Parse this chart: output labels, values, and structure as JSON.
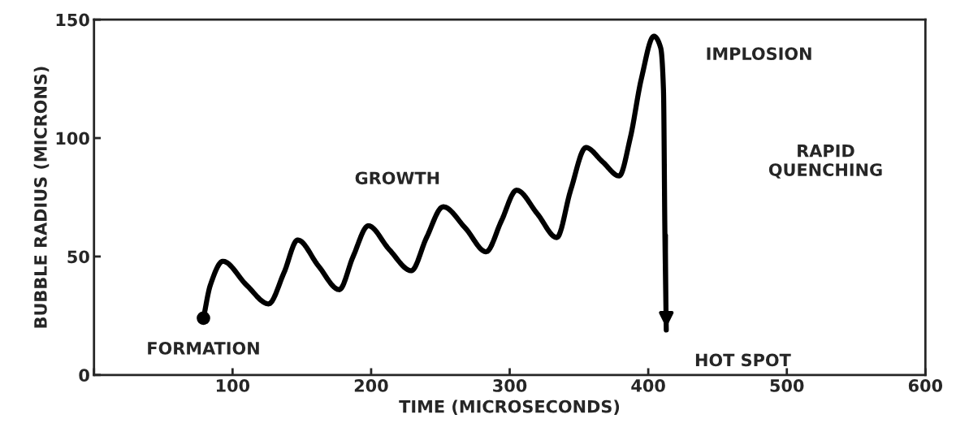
{
  "chart_data": {
    "type": "line",
    "xlabel": "TIME (MICROSECONDS)",
    "ylabel": "BUBBLE RADIUS (MICRONS)",
    "xlim": [
      0,
      600
    ],
    "xticks": [
      {
        "value": 0,
        "label": null
      },
      100,
      200,
      300,
      400,
      500,
      600
    ],
    "ylim": [
      0,
      150
    ],
    "yticks": [
      0,
      50,
      100,
      150
    ],
    "series": [
      {
        "color": "#000000",
        "x": [
          79,
          84,
          93,
          110,
          126,
          137,
          147,
          162,
          177,
          187,
          198,
          213,
          229,
          240,
          252,
          268,
          283,
          294,
          305,
          320,
          334,
          344,
          355,
          367,
          379,
          387,
          395,
          404,
          409,
          411,
          412,
          413
        ],
        "values": [
          24,
          38,
          48,
          38,
          30,
          43,
          57,
          46,
          36,
          50,
          63,
          53,
          44,
          58,
          71,
          62,
          52,
          65,
          78,
          68,
          58,
          78,
          96,
          90,
          84,
          100,
          125,
          143,
          138,
          120,
          60,
          19
        ]
      }
    ],
    "annotations": [
      {
        "text": "FORMATION",
        "x": 79,
        "y": 24
      },
      "GROWTH",
      "IMPLOSION",
      {
        "text": "HOT SPOT",
        "x": 413,
        "y": 19
      },
      "RAPID\nQUENCHING"
    ],
    "grid": false,
    "legend": false
  }
}
